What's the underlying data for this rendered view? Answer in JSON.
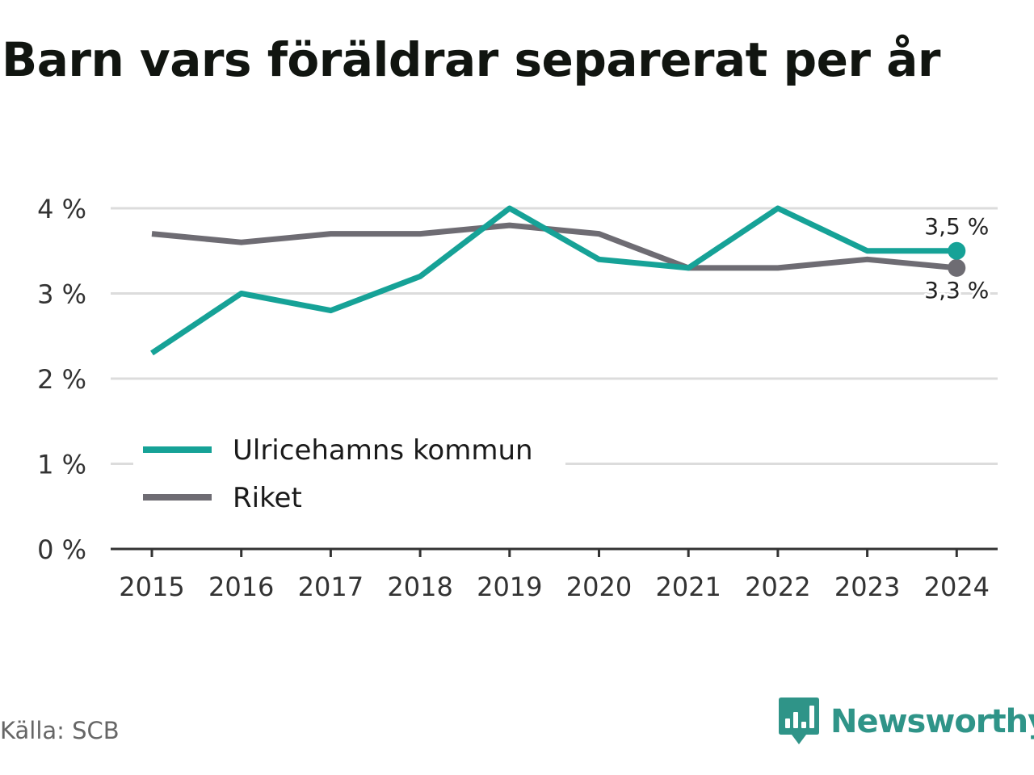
{
  "title": "Barn vars föräldrar separerat per år",
  "source": "Källa: SCB",
  "brand": {
    "name": "Newsworthy",
    "color": "#2f9488"
  },
  "chart_data": {
    "type": "line",
    "x": [
      "2015",
      "2016",
      "2017",
      "2018",
      "2019",
      "2020",
      "2021",
      "2022",
      "2023",
      "2024"
    ],
    "series": [
      {
        "name": "Ulricehamns kommun",
        "color": "#16a297",
        "values": [
          2.3,
          3.0,
          2.8,
          3.2,
          4.0,
          3.4,
          3.3,
          4.0,
          3.5,
          3.5
        ],
        "end_label": "3,5 %"
      },
      {
        "name": "Riket",
        "color": "#6e6c73",
        "values": [
          3.7,
          3.6,
          3.7,
          3.7,
          3.8,
          3.7,
          3.3,
          3.3,
          3.4,
          3.3
        ],
        "end_label": "3,3 %"
      }
    ],
    "yticks": [
      0,
      1,
      2,
      3,
      4
    ],
    "ytick_labels": [
      "0 %",
      "1 %",
      "2 %",
      "3 %",
      "4 %"
    ],
    "ylim": [
      0,
      4
    ],
    "grid": true,
    "legend_position": "bottom-left"
  }
}
